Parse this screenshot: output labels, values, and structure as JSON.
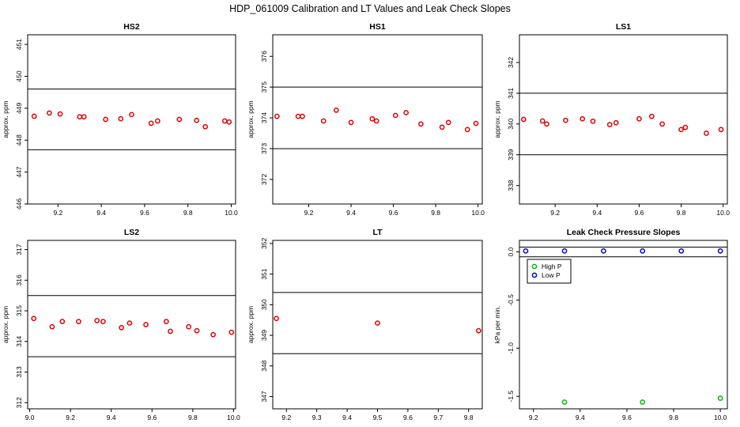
{
  "figure_title": "HDP_061009  Calibration and LT Values and Leak Check Slopes",
  "chart_data": [
    {
      "type": "scatter",
      "title": "HS2",
      "ylabel": "approx. ppm",
      "xlim": [
        9.06,
        10.02
      ],
      "ylim": [
        446,
        451.3
      ],
      "xticks": [
        9.2,
        9.4,
        9.6,
        9.8,
        10.0
      ],
      "xtick_labels": [
        "9.2",
        "9.4",
        "9.6",
        "9.8",
        "10.0"
      ],
      "yticks": [
        446,
        447,
        448,
        449,
        450,
        451
      ],
      "ytick_labels": [
        "446",
        "447",
        "448",
        "449",
        "450",
        "451"
      ],
      "hlines": [
        447.7,
        449.6
      ],
      "color": "#dd0000",
      "series": [
        {
          "x": [
            9.09,
            9.16,
            9.21,
            9.3,
            9.32,
            9.42,
            9.49,
            9.54,
            9.63,
            9.66,
            9.76,
            9.84,
            9.88,
            9.97,
            9.99
          ],
          "y": [
            448.75,
            448.85,
            448.82,
            448.73,
            448.73,
            448.65,
            448.67,
            448.8,
            448.53,
            448.6,
            448.65,
            448.62,
            448.42,
            448.6,
            448.57
          ]
        }
      ]
    },
    {
      "type": "scatter",
      "title": "HS1",
      "ylabel": "approx. ppm",
      "xlim": [
        9.03,
        10.02
      ],
      "ylim": [
        371.2,
        376.7
      ],
      "xticks": [
        9.2,
        9.4,
        9.6,
        9.8,
        10.0
      ],
      "xtick_labels": [
        "9.2",
        "9.4",
        "9.6",
        "9.8",
        "10.0"
      ],
      "yticks": [
        372,
        373,
        374,
        375,
        376
      ],
      "ytick_labels": [
        "372",
        "373",
        "374",
        "375",
        "376"
      ],
      "hlines": [
        373.0,
        375.0
      ],
      "color": "#dd0000",
      "series": [
        {
          "x": [
            9.05,
            9.15,
            9.17,
            9.27,
            9.33,
            9.4,
            9.5,
            9.52,
            9.61,
            9.66,
            9.73,
            9.83,
            9.86,
            9.95,
            9.99
          ],
          "y": [
            374.05,
            374.05,
            374.05,
            373.9,
            374.25,
            373.85,
            373.97,
            373.9,
            374.08,
            374.17,
            373.8,
            373.7,
            373.85,
            373.62,
            373.82
          ]
        }
      ]
    },
    {
      "type": "scatter",
      "title": "LS1",
      "ylabel": "approx. ppm",
      "xlim": [
        9.03,
        10.02
      ],
      "ylim": [
        337.4,
        342.9
      ],
      "xticks": [
        9.2,
        9.4,
        9.6,
        9.8,
        10.0
      ],
      "xtick_labels": [
        "9.2",
        "9.4",
        "9.6",
        "9.8",
        "10.0"
      ],
      "yticks": [
        338,
        339,
        340,
        341,
        342
      ],
      "ytick_labels": [
        "338",
        "339",
        "340",
        "341",
        "342"
      ],
      "hlines": [
        339.0,
        341.0
      ],
      "color": "#dd0000",
      "series": [
        {
          "x": [
            9.05,
            9.14,
            9.16,
            9.25,
            9.33,
            9.38,
            9.46,
            9.49,
            9.6,
            9.66,
            9.71,
            9.8,
            9.82,
            9.92,
            9.99
          ],
          "y": [
            340.15,
            340.1,
            340.0,
            340.12,
            340.17,
            340.09,
            339.98,
            340.04,
            340.17,
            340.25,
            340.0,
            339.82,
            339.89,
            339.7,
            339.82
          ]
        }
      ]
    },
    {
      "type": "scatter",
      "title": "LS2",
      "ylabel": "approx. ppm",
      "xlim": [
        8.99,
        10.01
      ],
      "ylim": [
        311.8,
        317.3
      ],
      "xticks": [
        9.0,
        9.2,
        9.4,
        9.6,
        9.8,
        10.0
      ],
      "xtick_labels": [
        "9.0",
        "9.2",
        "9.4",
        "9.6",
        "9.8",
        "10.0"
      ],
      "yticks": [
        312,
        313,
        314,
        315,
        316,
        317
      ],
      "ytick_labels": [
        "312",
        "313",
        "314",
        "315",
        "316",
        "317"
      ],
      "hlines": [
        313.5,
        315.5
      ],
      "color": "#dd0000",
      "series": [
        {
          "x": [
            9.02,
            9.11,
            9.16,
            9.24,
            9.33,
            9.36,
            9.45,
            9.49,
            9.57,
            9.67,
            9.69,
            9.78,
            9.82,
            9.9,
            9.99
          ],
          "y": [
            314.75,
            314.48,
            314.65,
            314.65,
            314.68,
            314.65,
            314.45,
            314.6,
            314.55,
            314.65,
            314.33,
            314.48,
            314.35,
            314.22,
            314.3
          ]
        }
      ]
    },
    {
      "type": "scatter",
      "title": "LT",
      "ylabel": "approx. ppm",
      "xlim": [
        9.155,
        9.845
      ],
      "ylim": [
        346.6,
        352.1
      ],
      "xticks": [
        9.2,
        9.3,
        9.4,
        9.5,
        9.6,
        9.7,
        9.8
      ],
      "xtick_labels": [
        "9.2",
        "9.3",
        "9.4",
        "9.5",
        "9.6",
        "9.7",
        "9.8"
      ],
      "yticks": [
        347,
        348,
        349,
        350,
        351,
        352
      ],
      "ytick_labels": [
        "347",
        "348",
        "349",
        "350",
        "351",
        "352"
      ],
      "hlines": [
        348.4,
        350.4
      ],
      "color": "#dd0000",
      "series": [
        {
          "x": [
            9.167,
            9.5,
            9.833
          ],
          "y": [
            349.55,
            349.4,
            349.15
          ]
        }
      ]
    },
    {
      "type": "scatter",
      "title": "Leak Check Pressure Slopes",
      "ylabel": "kPa per min.",
      "xlim": [
        9.14,
        10.03
      ],
      "ylim": [
        -1.63,
        0.12
      ],
      "xticks": [
        9.2,
        9.4,
        9.6,
        9.8,
        10.0
      ],
      "xtick_labels": [
        "9.2",
        "9.4",
        "9.6",
        "9.8",
        "10.0"
      ],
      "yticks": [
        -1.5,
        -1.0,
        -0.5,
        0.0
      ],
      "ytick_labels": [
        "-1.5",
        "-1.0",
        "-0.5",
        "0.0"
      ],
      "hlines": [
        -0.05,
        0.05
      ],
      "legend": {
        "position": "top-left",
        "entries": [
          "High P",
          "Low P"
        ]
      },
      "series": [
        {
          "name": "High P",
          "color": "#00bb00",
          "x": [
            9.333,
            9.667,
            10.0
          ],
          "y": [
            -1.56,
            -1.56,
            -1.52
          ]
        },
        {
          "name": "Low P",
          "color": "#0000cc",
          "x": [
            9.167,
            9.333,
            9.5,
            9.667,
            9.833,
            10.0
          ],
          "y": [
            0.01,
            0.01,
            0.01,
            0.01,
            0.01,
            0.01
          ]
        }
      ]
    }
  ]
}
